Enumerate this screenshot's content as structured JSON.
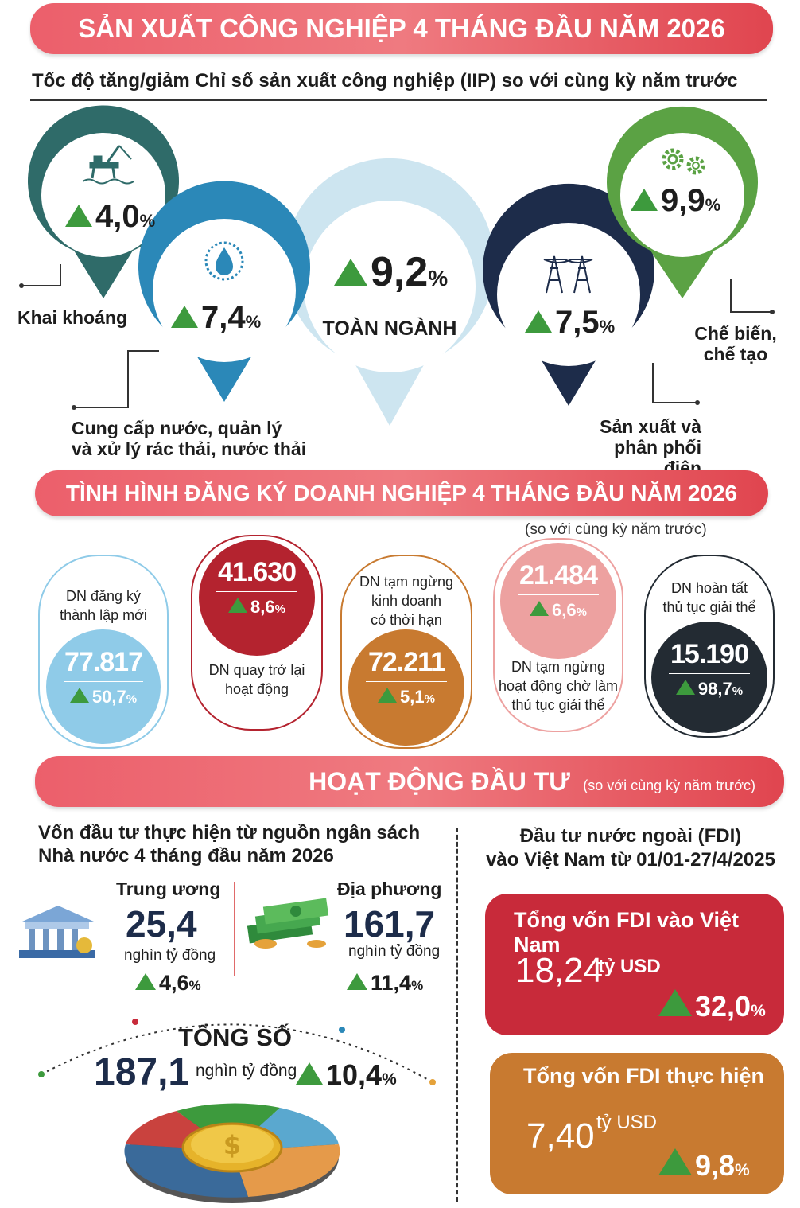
{
  "header": {
    "title": "SẢN XUẤT CÔNG NGHIỆP 4 THÁNG ĐẦU NĂM 2026"
  },
  "iip": {
    "subtitle": "Tốc độ tăng/giảm Chỉ số sản xuất công nghiệp (IIP) so với cùng kỳ năm trước",
    "mining": {
      "value": "4,0",
      "unit": "%",
      "label": "Khai khoáng",
      "icon": "oil-rig-icon",
      "color": "#2f6b69"
    },
    "water": {
      "value": "7,4",
      "unit": "%",
      "label_l1": "Cung cấp nước, quản lý",
      "label_l2": "và xử lý rác thải, nước thải",
      "icon": "water-drop-icon",
      "color": "#2b88b8"
    },
    "total": {
      "value": "9,2",
      "unit": "%",
      "label": "TOÀN NGÀNH",
      "color": "#cde5f0"
    },
    "power": {
      "value": "7,5",
      "unit": "%",
      "label_l1": "Sản xuất và",
      "label_l2": "phân phối điện",
      "icon": "power-tower-icon",
      "color": "#1d2c4a"
    },
    "manufacturing": {
      "value": "9,9",
      "unit": "%",
      "label_l1": "Chế biến,",
      "label_l2": "chế tạo",
      "icon": "gears-icon",
      "color": "#5ba244"
    }
  },
  "business": {
    "title": "TÌNH HÌNH ĐĂNG KÝ DOANH NGHIỆP 4 THÁNG ĐẦU NĂM 2026",
    "note": "(so với cùng kỳ năm trước)",
    "cards": [
      {
        "label_l1": "DN đăng ký",
        "label_l2": "thành lập mới",
        "label_l3": "",
        "value": "77.817",
        "change": "50,7",
        "unit": "%",
        "color": "#8fcbe8"
      },
      {
        "label_l1": "DN quay trở lại",
        "label_l2": "hoạt động",
        "label_l3": "",
        "value": "41.630",
        "change": "8,6",
        "unit": "%",
        "color": "#b4232f"
      },
      {
        "label_l1": "DN tạm ngừng",
        "label_l2": "kinh doanh",
        "label_l3": "có thời hạn",
        "value": "72.211",
        "change": "5,1",
        "unit": "%",
        "color": "#c87a30"
      },
      {
        "label_l1": "DN tạm ngừng",
        "label_l2": "hoạt động chờ làm",
        "label_l3": "thủ tục giải thể",
        "value": "21.484",
        "change": "6,6",
        "unit": "%",
        "color": "#eda1a0"
      },
      {
        "label_l1": "DN hoàn tất",
        "label_l2": "thủ tục giải thể",
        "label_l3": "",
        "value": "15.190",
        "change": "98,7",
        "unit": "%",
        "color": "#232b33"
      }
    ]
  },
  "investment": {
    "title": "HOẠT ĐỘNG ĐẦU TƯ",
    "note": "(so với cùng kỳ năm trước)",
    "budget_title_l1": "Vốn đầu tư thực hiện từ nguồn ngân sách",
    "budget_title_l2": "Nhà nước 4 tháng đầu năm 2026",
    "central": {
      "label": "Trung ương",
      "value": "25,4",
      "unit": "nghìn tỷ đồng",
      "change": "4,6",
      "pct": "%"
    },
    "local": {
      "label": "Địa phương",
      "value": "161,7",
      "unit": "nghìn tỷ đồng",
      "change": "11,4",
      "pct": "%"
    },
    "total": {
      "label": "TỔNG SỐ",
      "value": "187,1",
      "unit": "nghìn tỷ đồng",
      "change": "10,4",
      "pct": "%"
    },
    "fdi_title_l1": "Đầu tư nước ngoài (FDI)",
    "fdi_title_l2": "vào Việt Nam từ 01/01-27/4/2025",
    "fdi_total": {
      "label": "Tổng vốn FDI vào Việt Nam",
      "value": "18,24",
      "unit": "tỷ USD",
      "change": "32,0",
      "pct": "%",
      "color": "#c82a3a"
    },
    "fdi_realized": {
      "label": "Tổng vốn FDI thực hiện",
      "value": "7,40",
      "unit": "tỷ USD",
      "change": "9,8",
      "pct": "%",
      "color": "#c87a30"
    }
  }
}
